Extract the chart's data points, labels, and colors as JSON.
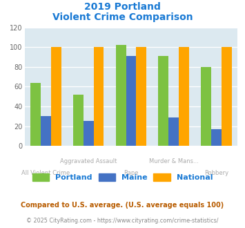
{
  "title_line1": "2019 Portland",
  "title_line2": "Violent Crime Comparison",
  "categories": [
    "All Violent Crime",
    "Aggravated Assault",
    "Rape",
    "Murder & Mans...",
    "Robbery"
  ],
  "series": {
    "Portland": [
      64,
      52,
      102,
      91,
      80
    ],
    "Maine": [
      30,
      25,
      91,
      29,
      17
    ],
    "National": [
      100,
      100,
      100,
      100,
      100
    ]
  },
  "colors": {
    "Portland": "#7dc242",
    "Maine": "#4472c4",
    "National": "#ffa500"
  },
  "ylim": [
    0,
    120
  ],
  "yticks": [
    0,
    20,
    40,
    60,
    80,
    100,
    120
  ],
  "bar_width": 0.24,
  "bg_color": "#dce9f0",
  "title_color": "#1a7ad4",
  "xlabel_color": "#aaaaaa",
  "legend_label_color": "#1a7ad4",
  "footnote1": "Compared to U.S. average. (U.S. average equals 100)",
  "footnote2": "© 2025 CityRating.com - https://www.cityrating.com/crime-statistics/",
  "footnote1_color": "#b85c00",
  "footnote2_color": "#888888"
}
